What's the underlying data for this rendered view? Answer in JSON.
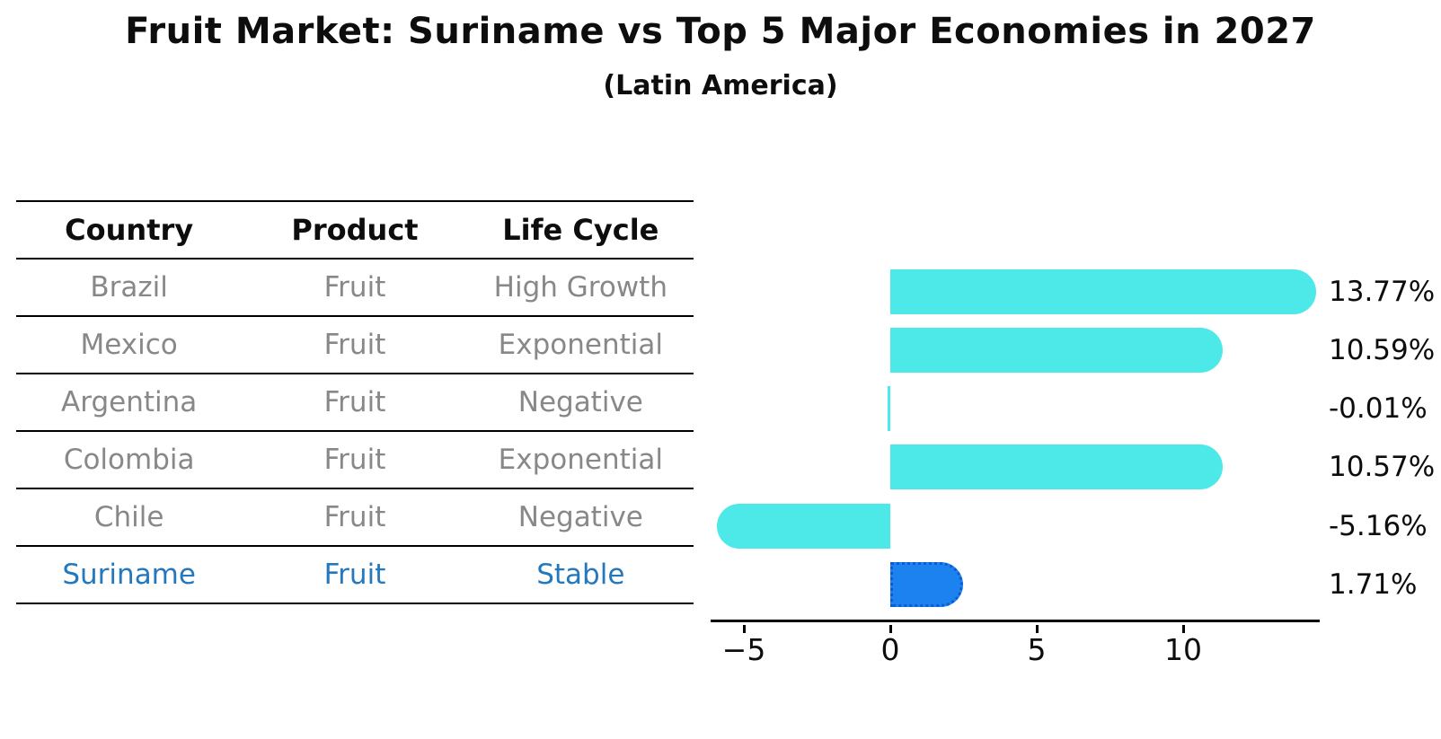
{
  "title": "Fruit Market: Suriname vs Top 5 Major Economies in 2027",
  "subtitle": "(Latin America)",
  "table": {
    "headers": [
      "Country",
      "Product",
      "Life Cycle"
    ],
    "rows": [
      {
        "country": "Brazil",
        "product": "Fruit",
        "life_cycle": "High Growth",
        "highlight": false
      },
      {
        "country": "Mexico",
        "product": "Fruit",
        "life_cycle": "Exponential",
        "highlight": false
      },
      {
        "country": "Argentina",
        "product": "Fruit",
        "life_cycle": "Negative",
        "highlight": false
      },
      {
        "country": "Colombia",
        "product": "Fruit",
        "life_cycle": "Exponential",
        "highlight": false
      },
      {
        "country": "Chile",
        "product": "Fruit",
        "life_cycle": "Negative",
        "highlight": false
      },
      {
        "country": "Suriname",
        "product": "Fruit",
        "life_cycle": "Stable",
        "highlight": true
      }
    ]
  },
  "chart_data": {
    "type": "bar",
    "orientation": "horizontal",
    "categories": [
      "Brazil",
      "Mexico",
      "Argentina",
      "Colombia",
      "Chile",
      "Suriname"
    ],
    "values": [
      13.77,
      10.59,
      -0.01,
      10.57,
      -5.16,
      1.71
    ],
    "value_labels": [
      "13.77%",
      "10.59%",
      "-0.01%",
      "10.57%",
      "-5.16%",
      "1.71%"
    ],
    "x_ticks": [
      -5,
      0,
      5,
      10
    ],
    "x_tick_labels": [
      "−5",
      "0",
      "5",
      "10"
    ],
    "xlim": [
      -6.15,
      14.65
    ],
    "grid": false,
    "legend": "none",
    "bar_color": "#4de8e8",
    "highlight_index": 5,
    "highlight_color": "#1c82f0",
    "highlight_border_color": "#0d5bd0",
    "highlight_text_color": "#2478be",
    "row_text_color": "#888888",
    "axis_color": "#000000"
  }
}
